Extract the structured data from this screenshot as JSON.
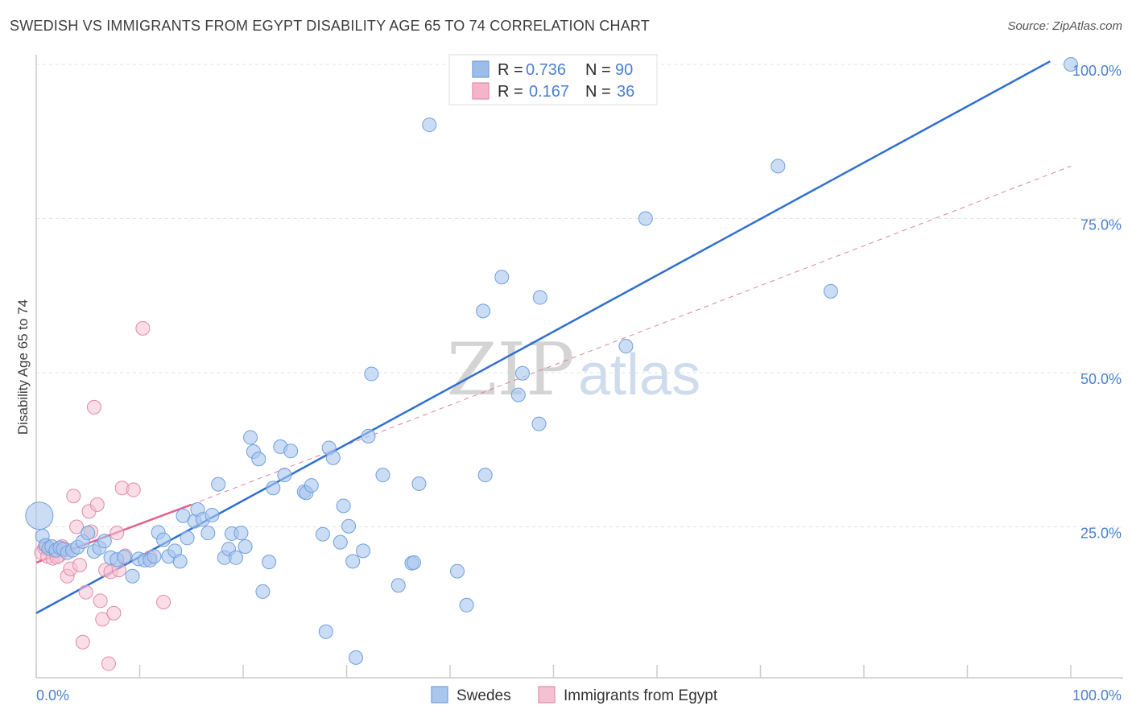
{
  "header": {
    "title": "SWEDISH VS IMMIGRANTS FROM EGYPT DISABILITY AGE 65 TO 74 CORRELATION CHART",
    "source": "Source: ZipAtlas.com"
  },
  "watermark": {
    "zip": "ZIP",
    "atlas": "atlas"
  },
  "legend": {
    "r_label": "R =",
    "n_label": "N =",
    "series": [
      {
        "r": "0.736",
        "n": "90",
        "color": "#9dbde9"
      },
      {
        "r": "0.167",
        "n": "36",
        "color": "#f3b5c9"
      }
    ]
  },
  "colors": {
    "blue_fill": "#a9c6ee",
    "blue_stroke": "#6f9fdc",
    "blue_line": "#2f6fd1",
    "pink_fill": "#f5c1d2",
    "pink_stroke": "#e58aa8",
    "pink_line": "#e0628b",
    "axis_text": "#4a7fd0"
  },
  "chart_data": {
    "type": "scatter",
    "title": "SWEDISH VS IMMIGRANTS FROM EGYPT DISABILITY AGE 65 TO 74 CORRELATION CHART",
    "xlabel": "",
    "ylabel": "Disability Age 65 to 74",
    "xlim": [
      0,
      100
    ],
    "ylim": [
      0,
      100
    ],
    "x_tick_labels": [
      "0.0%",
      "100.0%"
    ],
    "y_tick_labels": [
      "25.0%",
      "50.0%",
      "75.0%",
      "100.0%"
    ],
    "y_ticks": [
      25,
      50,
      75,
      100
    ],
    "grid": true,
    "legend_position": "top-center",
    "series": [
      {
        "name": "Swedes",
        "r": 0.736,
        "n": 90,
        "trend": {
          "x": [
            0,
            98
          ],
          "y": [
            11.0,
            100.5
          ],
          "style": "solid"
        },
        "points": [
          [
            0.3,
            26.8
          ],
          [
            0.6,
            23.5
          ],
          [
            0.9,
            22.0
          ],
          [
            1.2,
            21.5
          ],
          [
            1.5,
            21.8
          ],
          [
            1.9,
            21.2
          ],
          [
            2.3,
            21.6
          ],
          [
            2.6,
            21.4
          ],
          [
            3.0,
            20.8
          ],
          [
            3.5,
            21.2
          ],
          [
            4.0,
            21.7
          ],
          [
            4.5,
            22.6
          ],
          [
            5.0,
            24.0
          ],
          [
            5.6,
            21.0
          ],
          [
            6.1,
            21.6
          ],
          [
            6.6,
            22.7
          ],
          [
            7.2,
            20.0
          ],
          [
            7.8,
            19.7
          ],
          [
            8.5,
            20.1
          ],
          [
            9.3,
            17.0
          ],
          [
            9.9,
            19.8
          ],
          [
            10.5,
            19.6
          ],
          [
            11.0,
            19.6
          ],
          [
            11.4,
            20.2
          ],
          [
            11.8,
            24.1
          ],
          [
            12.3,
            22.9
          ],
          [
            12.8,
            20.2
          ],
          [
            13.4,
            21.1
          ],
          [
            13.9,
            19.4
          ],
          [
            14.2,
            26.8
          ],
          [
            14.6,
            23.2
          ],
          [
            15.3,
            25.9
          ],
          [
            15.6,
            27.8
          ],
          [
            16.1,
            26.2
          ],
          [
            16.6,
            24.0
          ],
          [
            17.0,
            26.9
          ],
          [
            17.6,
            31.9
          ],
          [
            18.2,
            20.0
          ],
          [
            18.6,
            21.4
          ],
          [
            18.9,
            23.9
          ],
          [
            19.3,
            20.0
          ],
          [
            19.8,
            24.0
          ],
          [
            20.2,
            21.8
          ],
          [
            20.7,
            39.5
          ],
          [
            21.0,
            37.2
          ],
          [
            21.5,
            36.0
          ],
          [
            21.9,
            14.5
          ],
          [
            22.5,
            19.3
          ],
          [
            22.9,
            31.3
          ],
          [
            23.6,
            38.0
          ],
          [
            24.0,
            33.4
          ],
          [
            24.6,
            37.3
          ],
          [
            25.9,
            30.7
          ],
          [
            26.1,
            30.5
          ],
          [
            26.6,
            31.7
          ],
          [
            27.7,
            23.8
          ],
          [
            28.0,
            8.0
          ],
          [
            28.3,
            37.8
          ],
          [
            28.7,
            36.2
          ],
          [
            29.4,
            22.5
          ],
          [
            29.7,
            28.4
          ],
          [
            30.2,
            25.1
          ],
          [
            30.6,
            19.4
          ],
          [
            30.9,
            3.8
          ],
          [
            31.6,
            21.1
          ],
          [
            32.1,
            39.7
          ],
          [
            32.4,
            49.8
          ],
          [
            33.5,
            33.4
          ],
          [
            35.0,
            15.5
          ],
          [
            36.3,
            19.1
          ],
          [
            36.5,
            19.2
          ],
          [
            37.0,
            32.0
          ],
          [
            38.0,
            90.2
          ],
          [
            40.7,
            17.8
          ],
          [
            41.6,
            12.3
          ],
          [
            43.2,
            60.0
          ],
          [
            43.4,
            33.4
          ],
          [
            45.0,
            65.5
          ],
          [
            46.6,
            46.4
          ],
          [
            47.0,
            49.9
          ],
          [
            47.5,
            100.0
          ],
          [
            48.6,
            41.7
          ],
          [
            48.7,
            62.2
          ],
          [
            53.3,
            100.0
          ],
          [
            57.0,
            54.3
          ],
          [
            58.9,
            97.5
          ],
          [
            58.9,
            75.0
          ],
          [
            71.7,
            83.5
          ],
          [
            76.8,
            63.2
          ],
          [
            100.0,
            100.0
          ]
        ]
      },
      {
        "name": "Immigrants from Egypt",
        "r": 0.167,
        "n": 36,
        "trend": {
          "x": [
            0,
            15
          ],
          "y": [
            19.2,
            28.6
          ],
          "style": "solid",
          "extended": {
            "x": [
              15,
              100
            ],
            "y": [
              28.6,
              83.5
            ],
            "style": "dashed"
          }
        },
        "points": [
          [
            0.5,
            20.8
          ],
          [
            0.8,
            21.6
          ],
          [
            1.1,
            20.2
          ],
          [
            1.4,
            21.4
          ],
          [
            1.6,
            19.9
          ],
          [
            1.9,
            21.0
          ],
          [
            2.2,
            20.3
          ],
          [
            2.5,
            21.8
          ],
          [
            2.8,
            21.3
          ],
          [
            3.0,
            17.0
          ],
          [
            3.3,
            18.2
          ],
          [
            3.6,
            30.0
          ],
          [
            3.9,
            25.0
          ],
          [
            4.2,
            18.8
          ],
          [
            4.5,
            6.3
          ],
          [
            4.8,
            14.4
          ],
          [
            5.1,
            27.5
          ],
          [
            5.3,
            24.2
          ],
          [
            5.6,
            44.4
          ],
          [
            5.9,
            28.6
          ],
          [
            6.2,
            13.0
          ],
          [
            6.4,
            10.0
          ],
          [
            6.7,
            18.0
          ],
          [
            7.0,
            2.8
          ],
          [
            7.2,
            17.7
          ],
          [
            7.5,
            11.0
          ],
          [
            7.8,
            24.0
          ],
          [
            8.0,
            18.0
          ],
          [
            8.3,
            31.3
          ],
          [
            8.6,
            20.3
          ],
          [
            9.4,
            31.0
          ],
          [
            10.3,
            57.2
          ],
          [
            11.0,
            20.0
          ],
          [
            12.3,
            12.8
          ],
          [
            1.0,
            21.9
          ],
          [
            2.0,
            20.1
          ]
        ]
      }
    ]
  },
  "bottom_legend": [
    {
      "label": "Swedes",
      "color": "#a9c6ee"
    },
    {
      "label": "Immigrants from Egypt",
      "color": "#f5c1d2"
    }
  ]
}
